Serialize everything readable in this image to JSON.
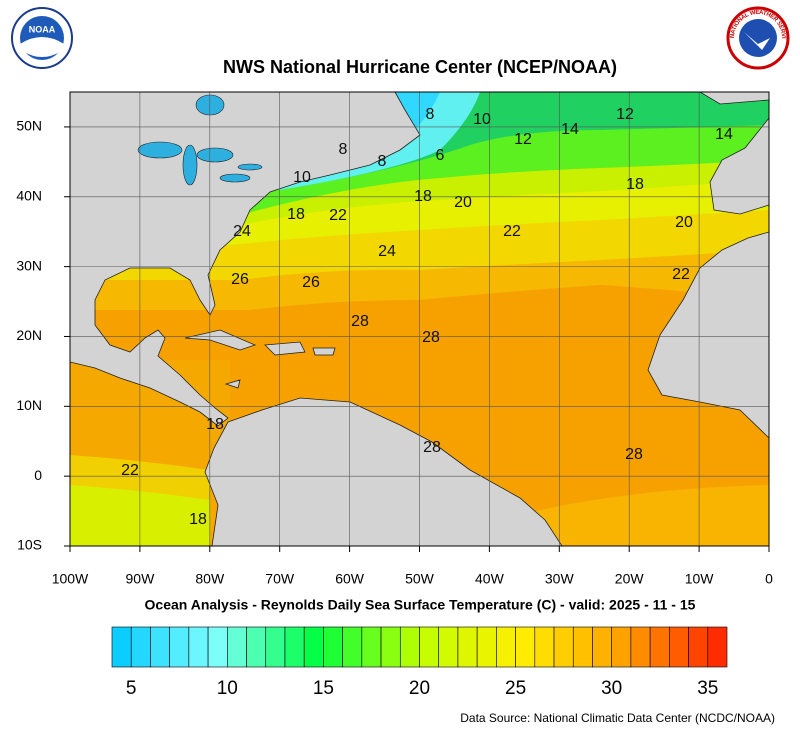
{
  "header": {
    "title": "NWS National Hurricane Center (NCEP/NOAA)",
    "logo_left": "NOAA",
    "logo_right": "NATIONAL WEATHER SERVICE"
  },
  "map": {
    "x_ticks": [
      {
        "value": -100,
        "label": "100W"
      },
      {
        "value": -90,
        "label": "90W"
      },
      {
        "value": -80,
        "label": "80W"
      },
      {
        "value": -70,
        "label": "70W"
      },
      {
        "value": -60,
        "label": "60W"
      },
      {
        "value": -50,
        "label": "50W"
      },
      {
        "value": -40,
        "label": "40W"
      },
      {
        "value": -30,
        "label": "30W"
      },
      {
        "value": -20,
        "label": "20W"
      },
      {
        "value": -10,
        "label": "10W"
      },
      {
        "value": 0,
        "label": "0"
      }
    ],
    "y_ticks": [
      {
        "value": 50,
        "label": "50N"
      },
      {
        "value": 40,
        "label": "40N"
      },
      {
        "value": 30,
        "label": "30N"
      },
      {
        "value": 20,
        "label": "20N"
      },
      {
        "value": 10,
        "label": "10N"
      },
      {
        "value": 0,
        "label": "0"
      },
      {
        "value": -10,
        "label": "10S"
      }
    ],
    "xlim": [
      -100,
      0
    ],
    "ylim": [
      -10,
      55
    ],
    "contour_labels": [
      8,
      10,
      12,
      14,
      12,
      14,
      8,
      8,
      6,
      10,
      18,
      18,
      20,
      18,
      22,
      20,
      22,
      24,
      24,
      22,
      26,
      26,
      28,
      28,
      18,
      28,
      28,
      22,
      18
    ]
  },
  "caption": "Ocean Analysis - Reynolds Daily Sea Surface Temperature (C) - valid: 2025 - 11 - 15",
  "colorbar": {
    "range": [
      4,
      36
    ],
    "ticks": [
      5,
      10,
      15,
      20,
      25,
      30,
      35
    ],
    "colors": [
      "#00c8ff",
      "#80ffff",
      "#00ff40",
      "#c0ff00",
      "#ffee00",
      "#ffa000",
      "#ff2000"
    ]
  },
  "source": "Data Source: National Climatic Data Center (NCDC/NOAA)"
}
